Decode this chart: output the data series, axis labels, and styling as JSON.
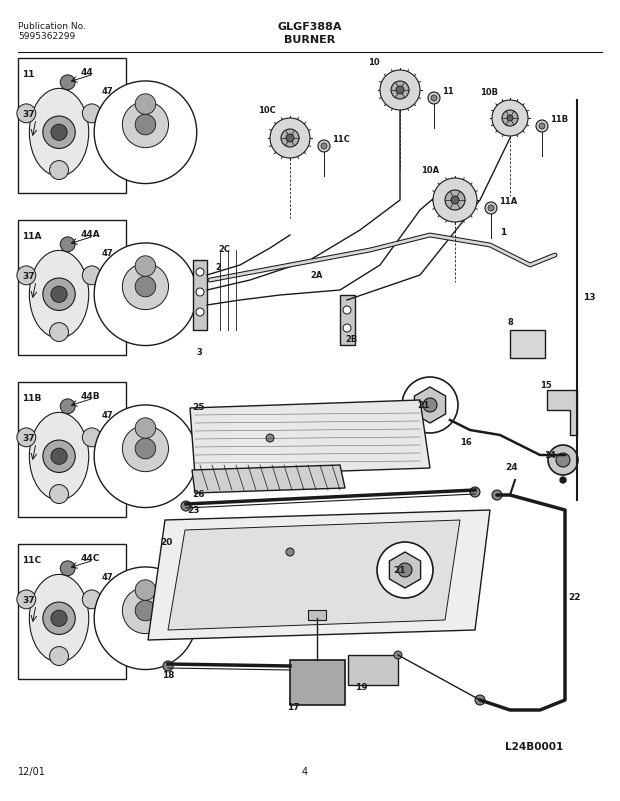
{
  "title": "GLGF388A",
  "subtitle": "BURNER",
  "pub_label": "Publication No.",
  "pub_number": "5995362299",
  "page_number": "4",
  "date": "12/01",
  "diagram_id": "L24B0001",
  "bg_color": "#ffffff",
  "line_color": "#1a1a1a",
  "text_color": "#1a1a1a",
  "fig_width": 6.2,
  "fig_height": 8.01,
  "dpi": 100
}
